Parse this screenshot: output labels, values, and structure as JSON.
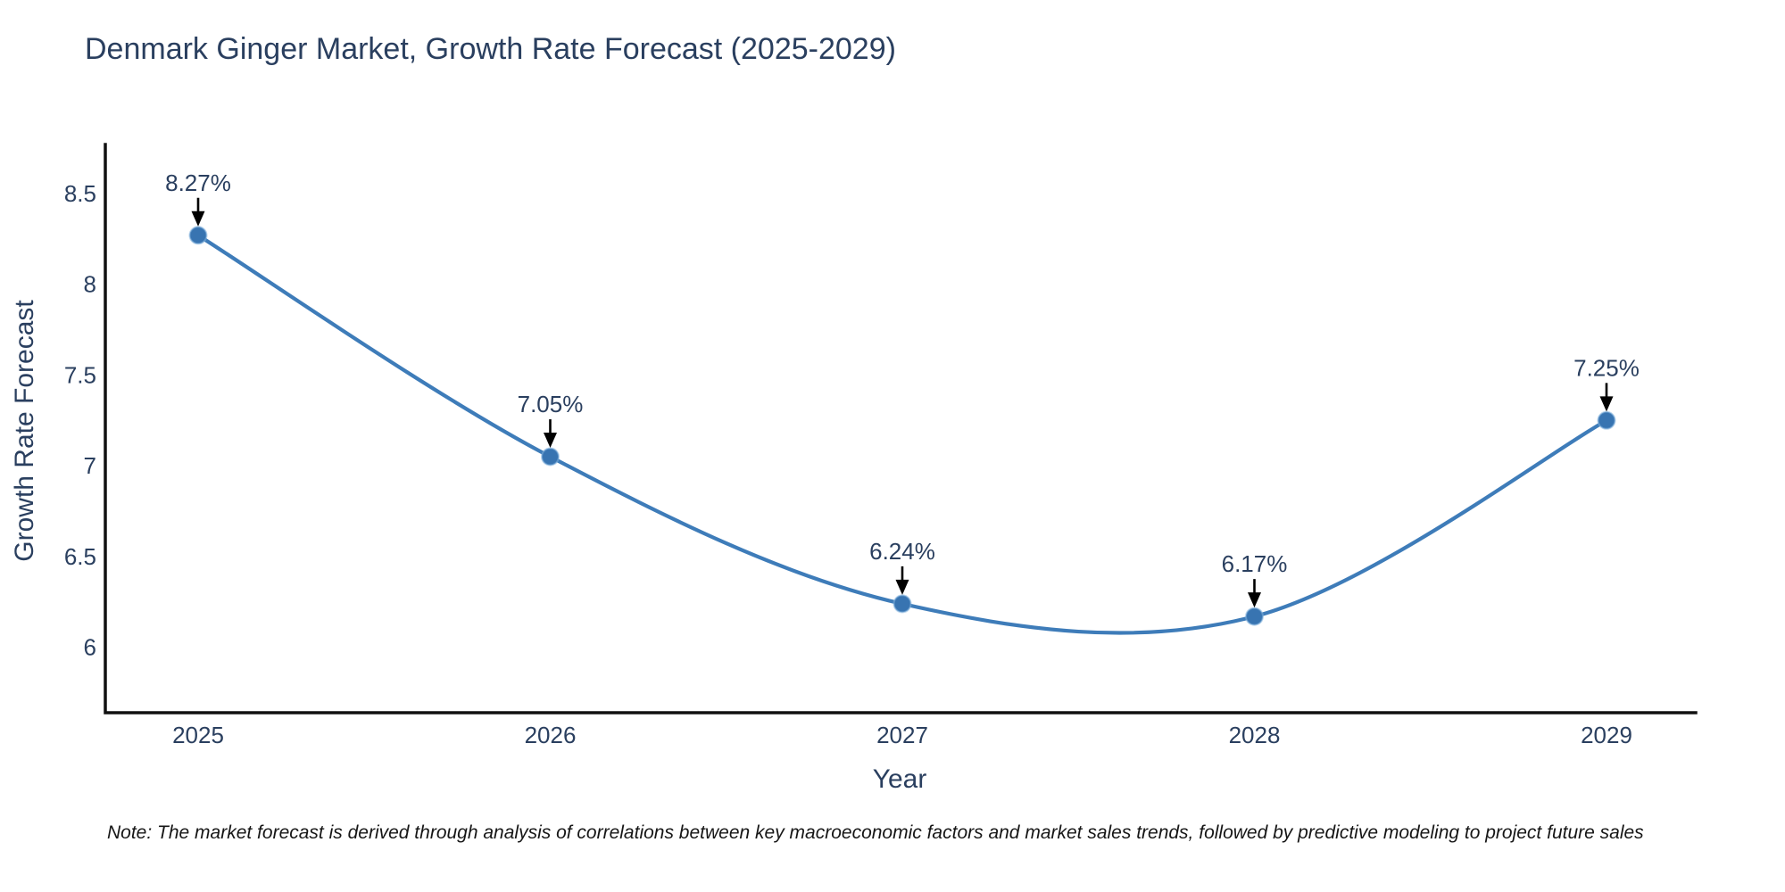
{
  "chart_data": {
    "type": "line",
    "line_shape": "spline",
    "title": "Denmark Ginger Market, Growth Rate Forecast (2025-2029)",
    "xlabel": "Year",
    "ylabel": "Growth Rate Forecast",
    "categories": [
      "2025",
      "2026",
      "2027",
      "2028",
      "2029"
    ],
    "series": [
      {
        "name": "Growth Rate Forecast",
        "values": [
          8.27,
          7.05,
          6.24,
          6.17,
          7.25
        ],
        "point_labels": [
          "8.27%",
          "7.05%",
          "6.24%",
          "6.17%",
          "7.25%"
        ]
      }
    ],
    "yticks": [
      8.5,
      8.0,
      7.5,
      7.0,
      6.5,
      6.0
    ],
    "ylim": [
      5.64,
      8.77
    ],
    "grid": false,
    "legend_position": "none",
    "annotation_style": "value label above point with black arrow pointing down to marker",
    "colors": {
      "line": "#3e7cb9",
      "marker": "#3874b1",
      "marker_halo": "#7fb0dc",
      "axis": "#111111",
      "text": "#2a3f5f",
      "arrow": "#000000",
      "note_text": "#161616",
      "background": "#ffffff"
    },
    "note": "Note: The market forecast is derived through analysis of correlations between key macroeconomic factors and market sales trends, followed by predictive modeling to project future sales"
  }
}
